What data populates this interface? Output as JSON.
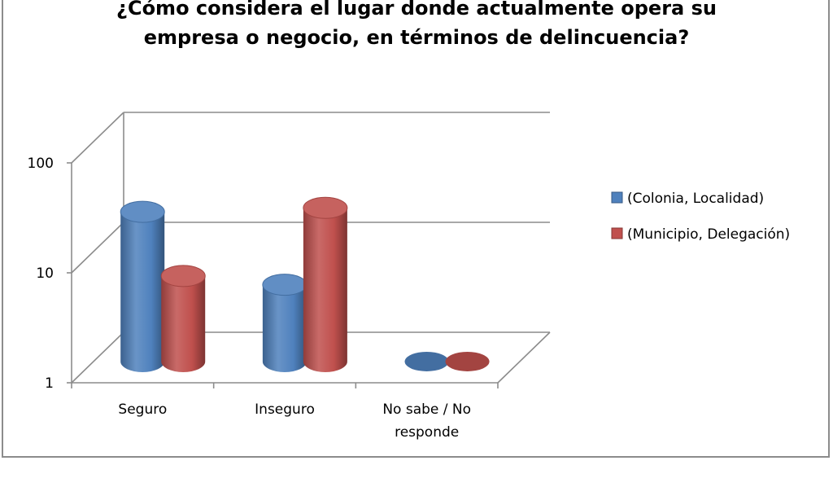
{
  "chart_data": {
    "type": "bar",
    "title_lines": [
      "¿Cómo considera el lugar donde actualmente opera su",
      "empresa o negocio, en términos de delincuencia?"
    ],
    "categories": [
      "Seguro",
      "Inseguro",
      "No sabe / No responde"
    ],
    "category_label_lines": [
      [
        "Seguro"
      ],
      [
        "Inseguro"
      ],
      [
        "No sabe / No",
        "responde"
      ]
    ],
    "series": [
      {
        "name": "(Colonia, Localidad)",
        "color": "#4f81bd",
        "values": [
          23,
          5,
          1
        ]
      },
      {
        "name": "(Municipio, Delegación)",
        "color": "#c0504d",
        "values": [
          6,
          25,
          1
        ]
      }
    ],
    "y_scale": "log",
    "ylim": [
      1,
      100
    ],
    "y_ticks": [
      "1",
      "10",
      "100"
    ],
    "grid": true,
    "legend_position": "right"
  }
}
